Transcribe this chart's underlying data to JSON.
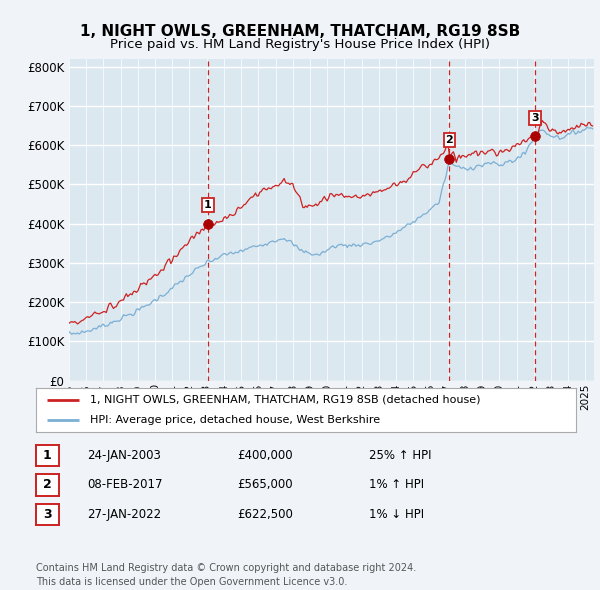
{
  "title": "1, NIGHT OWLS, GREENHAM, THATCHAM, RG19 8SB",
  "subtitle": "Price paid vs. HM Land Registry's House Price Index (HPI)",
  "title_fontsize": 11,
  "subtitle_fontsize": 9.5,
  "ylim": [
    0,
    820000
  ],
  "yticks": [
    0,
    100000,
    200000,
    300000,
    400000,
    500000,
    600000,
    700000,
    800000
  ],
  "ytick_labels": [
    "£0",
    "£100K",
    "£200K",
    "£300K",
    "£400K",
    "£500K",
    "£600K",
    "£700K",
    "£800K"
  ],
  "hpi_color": "#7bafd4",
  "price_color": "#cc2222",
  "sale_marker_color": "#aa0000",
  "vline_color": "#cc2222",
  "background_color": "#f0f4f8",
  "plot_bg_color": "#dce8f0",
  "grid_color": "#ffffff",
  "sales": [
    {
      "date_num": 2003.07,
      "price": 400000,
      "label": "1"
    },
    {
      "date_num": 2017.1,
      "price": 565000,
      "label": "2"
    },
    {
      "date_num": 2022.07,
      "price": 622500,
      "label": "3"
    }
  ],
  "sale_table": [
    {
      "num": "1",
      "date": "24-JAN-2003",
      "price": "£400,000",
      "hpi": "25% ↑ HPI"
    },
    {
      "num": "2",
      "date": "08-FEB-2017",
      "price": "£565,000",
      "hpi": "1% ↑ HPI"
    },
    {
      "num": "3",
      "date": "27-JAN-2022",
      "price": "£622,500",
      "hpi": "1% ↓ HPI"
    }
  ],
  "legend_entries": [
    "1, NIGHT OWLS, GREENHAM, THATCHAM, RG19 8SB (detached house)",
    "HPI: Average price, detached house, West Berkshire"
  ],
  "footer": "Contains HM Land Registry data © Crown copyright and database right 2024.\nThis data is licensed under the Open Government Licence v3.0.",
  "xmin": 1995.0,
  "xmax": 2025.5
}
